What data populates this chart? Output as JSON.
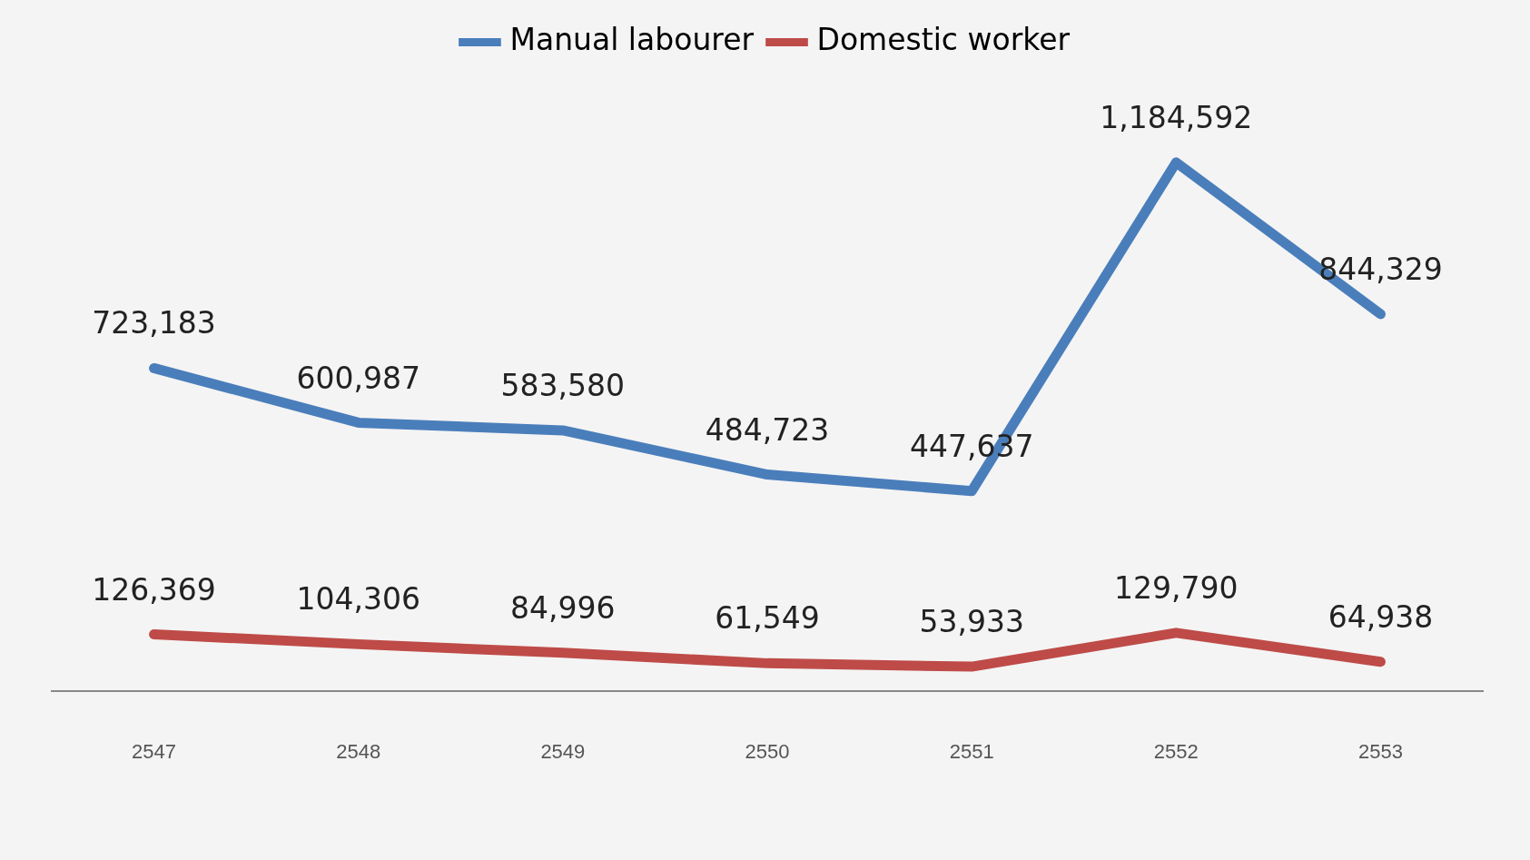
{
  "chart_data": {
    "type": "line",
    "categories": [
      "2547",
      "2548",
      "2549",
      "2550",
      "2551",
      "2552",
      "2553"
    ],
    "series": [
      {
        "name": "Manual labourer",
        "color": "#4a7ebb",
        "values": [
          723183,
          600987,
          583580,
          484723,
          447637,
          1184592,
          844329
        ],
        "value_labels": [
          "723,183",
          "600,987",
          "583,580",
          "484,723",
          "447,637",
          "1,184,592",
          "844,329"
        ]
      },
      {
        "name": "Domestic worker",
        "color": "#be4b48",
        "values": [
          126369,
          104306,
          84996,
          61549,
          53933,
          129790,
          64938
        ],
        "value_labels": [
          "126,369",
          "104,306",
          "84,996",
          "61,549",
          "53,933",
          "129,790",
          "64,938"
        ]
      }
    ],
    "legend": "top",
    "grid": false,
    "marker": "none"
  }
}
